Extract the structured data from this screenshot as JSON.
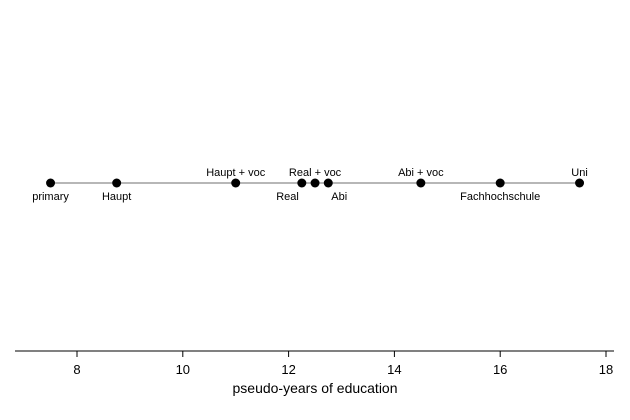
{
  "chart_data": {
    "type": "scatter",
    "title": "",
    "xlabel": "pseudo-years of education",
    "ylabel": "",
    "xlim": [
      6.8,
      18.2
    ],
    "xticks": [
      8,
      10,
      12,
      14,
      16,
      18
    ],
    "grid": false,
    "legend": "none",
    "series": [
      {
        "points": [
          {
            "x": 7.5,
            "label": "primary",
            "label_position": "below"
          },
          {
            "x": 8.75,
            "label": "Haupt",
            "label_position": "below"
          },
          {
            "x": 11.0,
            "label": "Haupt + voc",
            "label_position": "above"
          },
          {
            "x": 12.25,
            "label": "Real",
            "label_position": "below-left"
          },
          {
            "x": 12.5,
            "label": "Real + voc",
            "label_position": "above"
          },
          {
            "x": 12.75,
            "label": "Abi",
            "label_position": "below-right"
          },
          {
            "x": 14.5,
            "label": "Abi + voc",
            "label_position": "above"
          },
          {
            "x": 16.0,
            "label": "Fachhochschule",
            "label_position": "below"
          },
          {
            "x": 17.5,
            "label": "Uni",
            "label_position": "above"
          }
        ]
      }
    ],
    "colors": {
      "points": "#000000",
      "line": "#8c8c8c",
      "axis": "#000000"
    }
  }
}
